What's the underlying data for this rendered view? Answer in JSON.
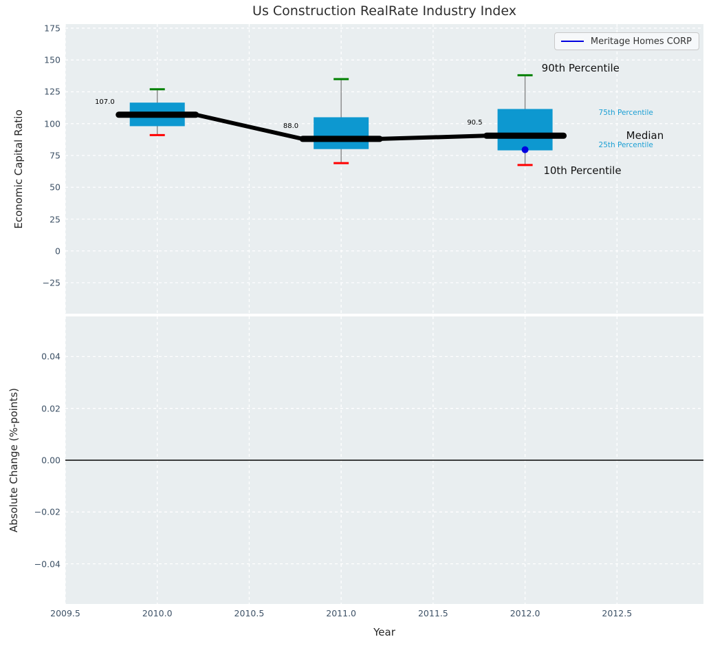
{
  "title": "Us Construction RealRate Industry Index",
  "legend": {
    "label": "Meritage Homes CORP",
    "line_color": "#0000e0"
  },
  "x_axis": {
    "label": "Year",
    "ticks": [
      2009.5,
      2010.0,
      2010.5,
      2011.0,
      2011.5,
      2012.0,
      2012.5
    ],
    "xlim": [
      2009.5,
      2012.97
    ]
  },
  "top_plot": {
    "ylabel": "Economic Capital Ratio",
    "yticks": [
      175,
      150,
      125,
      100,
      75,
      50,
      25,
      0,
      -25
    ],
    "ylim": [
      -49.3,
      178.2
    ]
  },
  "bottom_plot": {
    "ylabel": "Absolute Change (%-points)",
    "yticks": [
      0.04,
      0.02,
      0,
      -0.02,
      -0.04
    ],
    "ylim": [
      -0.0555,
      0.0555
    ],
    "zero_line_value": 0
  },
  "percentile_labels": [
    {
      "text": "90th Percentile",
      "x": 2012.09,
      "value": 143.5,
      "style": "large"
    },
    {
      "text": "75th Percentile",
      "x": 2012.4,
      "value": 108.5,
      "style": "small"
    },
    {
      "text": "Median",
      "x": 2012.55,
      "value": 90.5,
      "style": "large"
    },
    {
      "text": "25th Percentile",
      "x": 2012.4,
      "value": 83.0,
      "style": "small"
    },
    {
      "text": "10th Percentile",
      "x": 2012.1,
      "value": 63.0,
      "style": "large"
    }
  ],
  "chart_data": {
    "type": "boxplot",
    "title": "Us Construction RealRate Industry Index",
    "xlabel": "Year",
    "ylabel_top": "Economic Capital Ratio",
    "ylabel_bottom": "Absolute Change (%-points)",
    "legend_entry": "Meritage Homes CORP",
    "categories": [
      2010,
      2011,
      2012
    ],
    "boxes": [
      {
        "year": 2010,
        "p10": 91,
        "p25": 98,
        "median": 107.0,
        "p75": 116.5,
        "p90": 127,
        "median_label": "107.0"
      },
      {
        "year": 2011,
        "p10": 69,
        "p25": 80,
        "median": 88.0,
        "p75": 105,
        "p90": 135,
        "median_label": "88.0"
      },
      {
        "year": 2012,
        "p10": 67.5,
        "p25": 79,
        "median": 90.5,
        "p75": 111.5,
        "p90": 138,
        "median_label": "90.5"
      }
    ],
    "company_points": [
      {
        "year": 2012,
        "value": 79.5
      }
    ],
    "median_line_values": [
      107.0,
      88.0,
      90.5
    ],
    "bottom_series_values": [],
    "layout": {
      "grid": true,
      "grid_dashed": true,
      "legend_position": "upper right"
    },
    "colors": {
      "box_fill": "#0d98d0",
      "median": "#000000",
      "p90_cap": "#008000",
      "p10_cap": "#ff0000",
      "whisker": "#7f7f7f",
      "company_point": "#0000e0",
      "tick_text": "#3d5166",
      "small_label": "#1b9fd4",
      "grid": "#ffffff",
      "plot_bg": "#e9eef0",
      "zero_line": "#000000"
    }
  }
}
